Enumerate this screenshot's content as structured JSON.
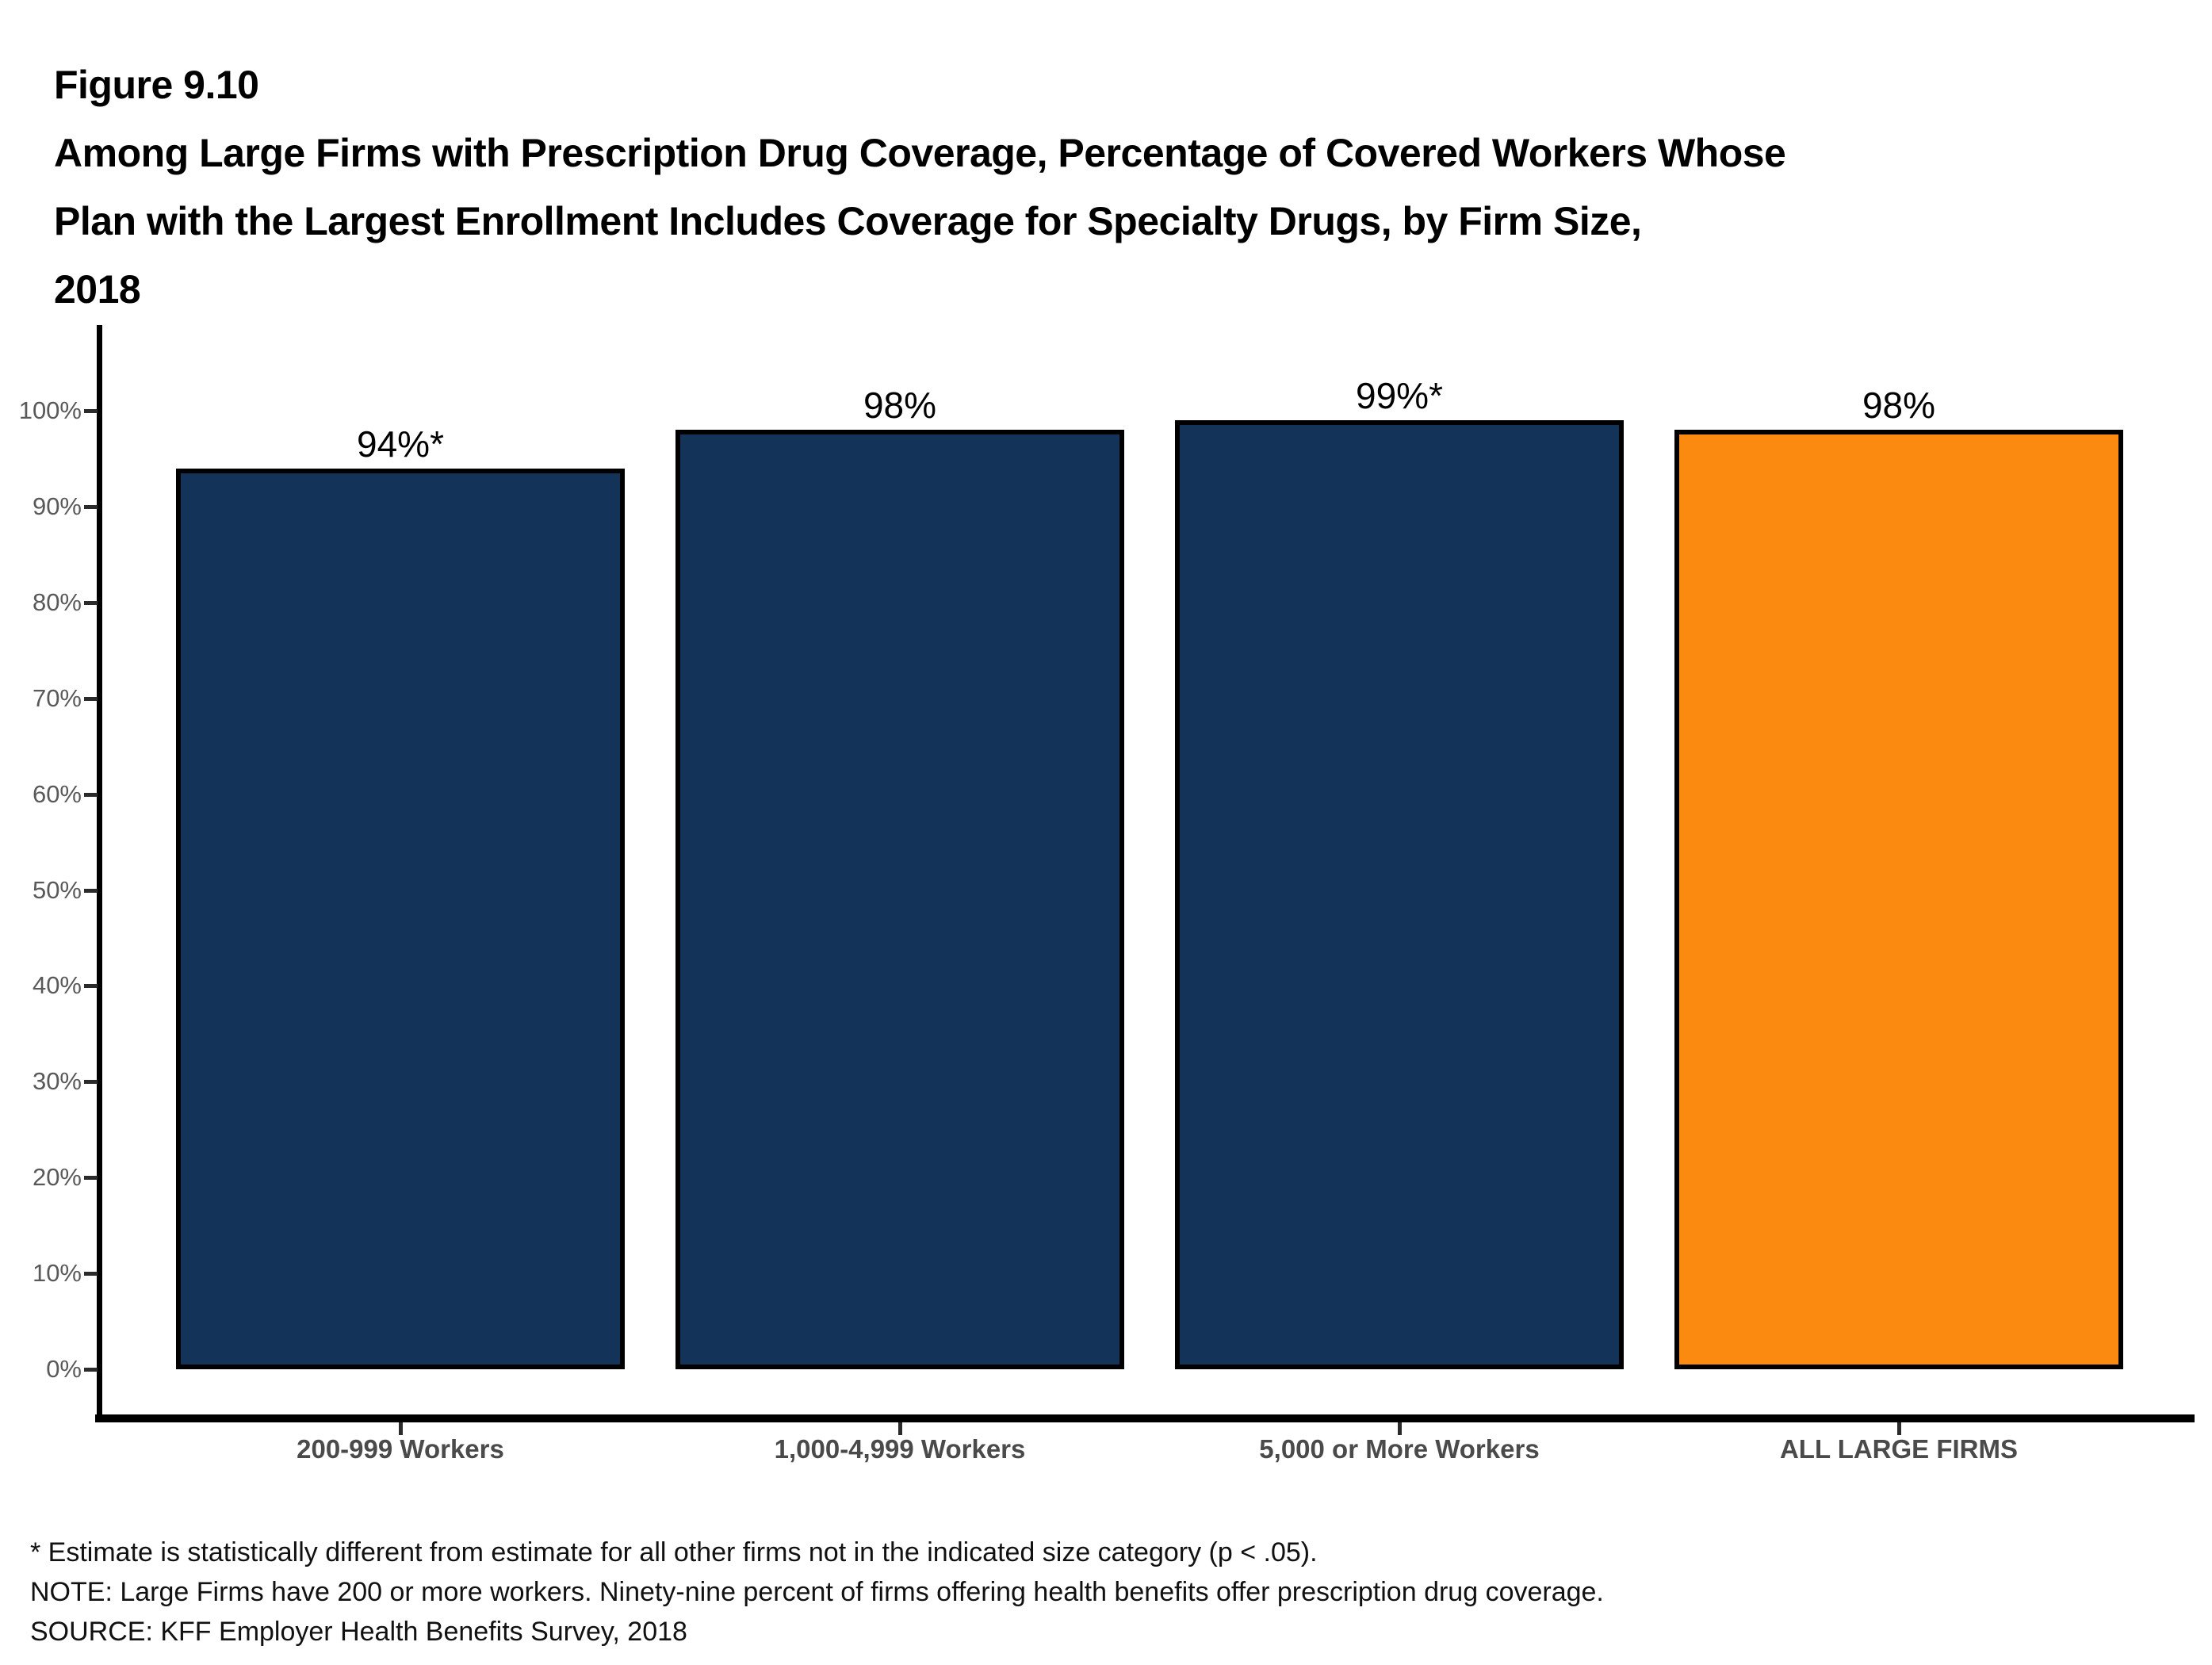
{
  "title": {
    "figure_label": "Figure 9.10",
    "lines": [
      "Among Large Firms with Prescription Drug Coverage, Percentage of Covered Workers Whose",
      "Plan with the Largest Enrollment Includes Coverage for Specialty Drugs, by Firm Size,",
      "2018"
    ]
  },
  "chart_data": {
    "type": "bar",
    "categories": [
      "200-999 Workers",
      "1,000-4,999 Workers",
      "5,000 or More Workers",
      "ALL LARGE FIRMS"
    ],
    "values": [
      94,
      98,
      99,
      98
    ],
    "bar_labels": [
      "94%*",
      "98%",
      "99%*",
      "98%"
    ],
    "bar_colors": [
      "#143359",
      "#143359",
      "#143359",
      "#FB8B10"
    ],
    "title": "Among Large Firms with Prescription Drug Coverage, Percentage of Covered Workers Whose Plan with the Largest Enrollment Includes Coverage for Specialty Drugs, by Firm Size, 2018",
    "xlabel": "",
    "ylabel": "",
    "ylim": [
      0,
      100
    ],
    "ytick_interval": 10,
    "ytick_labels": [
      "0%",
      "10%",
      "20%",
      "30%",
      "40%",
      "50%",
      "60%",
      "70%",
      "80%",
      "90%",
      "100%"
    ],
    "grid": false,
    "legend_position": "none"
  },
  "colors": {
    "bar_navy": "#143359",
    "bar_orange": "#FB8B10",
    "axis": "#000000",
    "tick_label_gray": "#595959",
    "category_label_gray": "#4a4a4a"
  },
  "footnotes": [
    "* Estimate is statistically different from estimate for all other firms not in the indicated size category (p < .05).",
    "NOTE: Large Firms have 200 or more workers. Ninety-nine percent of firms offering health benefits offer prescription drug coverage.",
    "SOURCE: KFF Employer Health Benefits Survey, 2018"
  ]
}
